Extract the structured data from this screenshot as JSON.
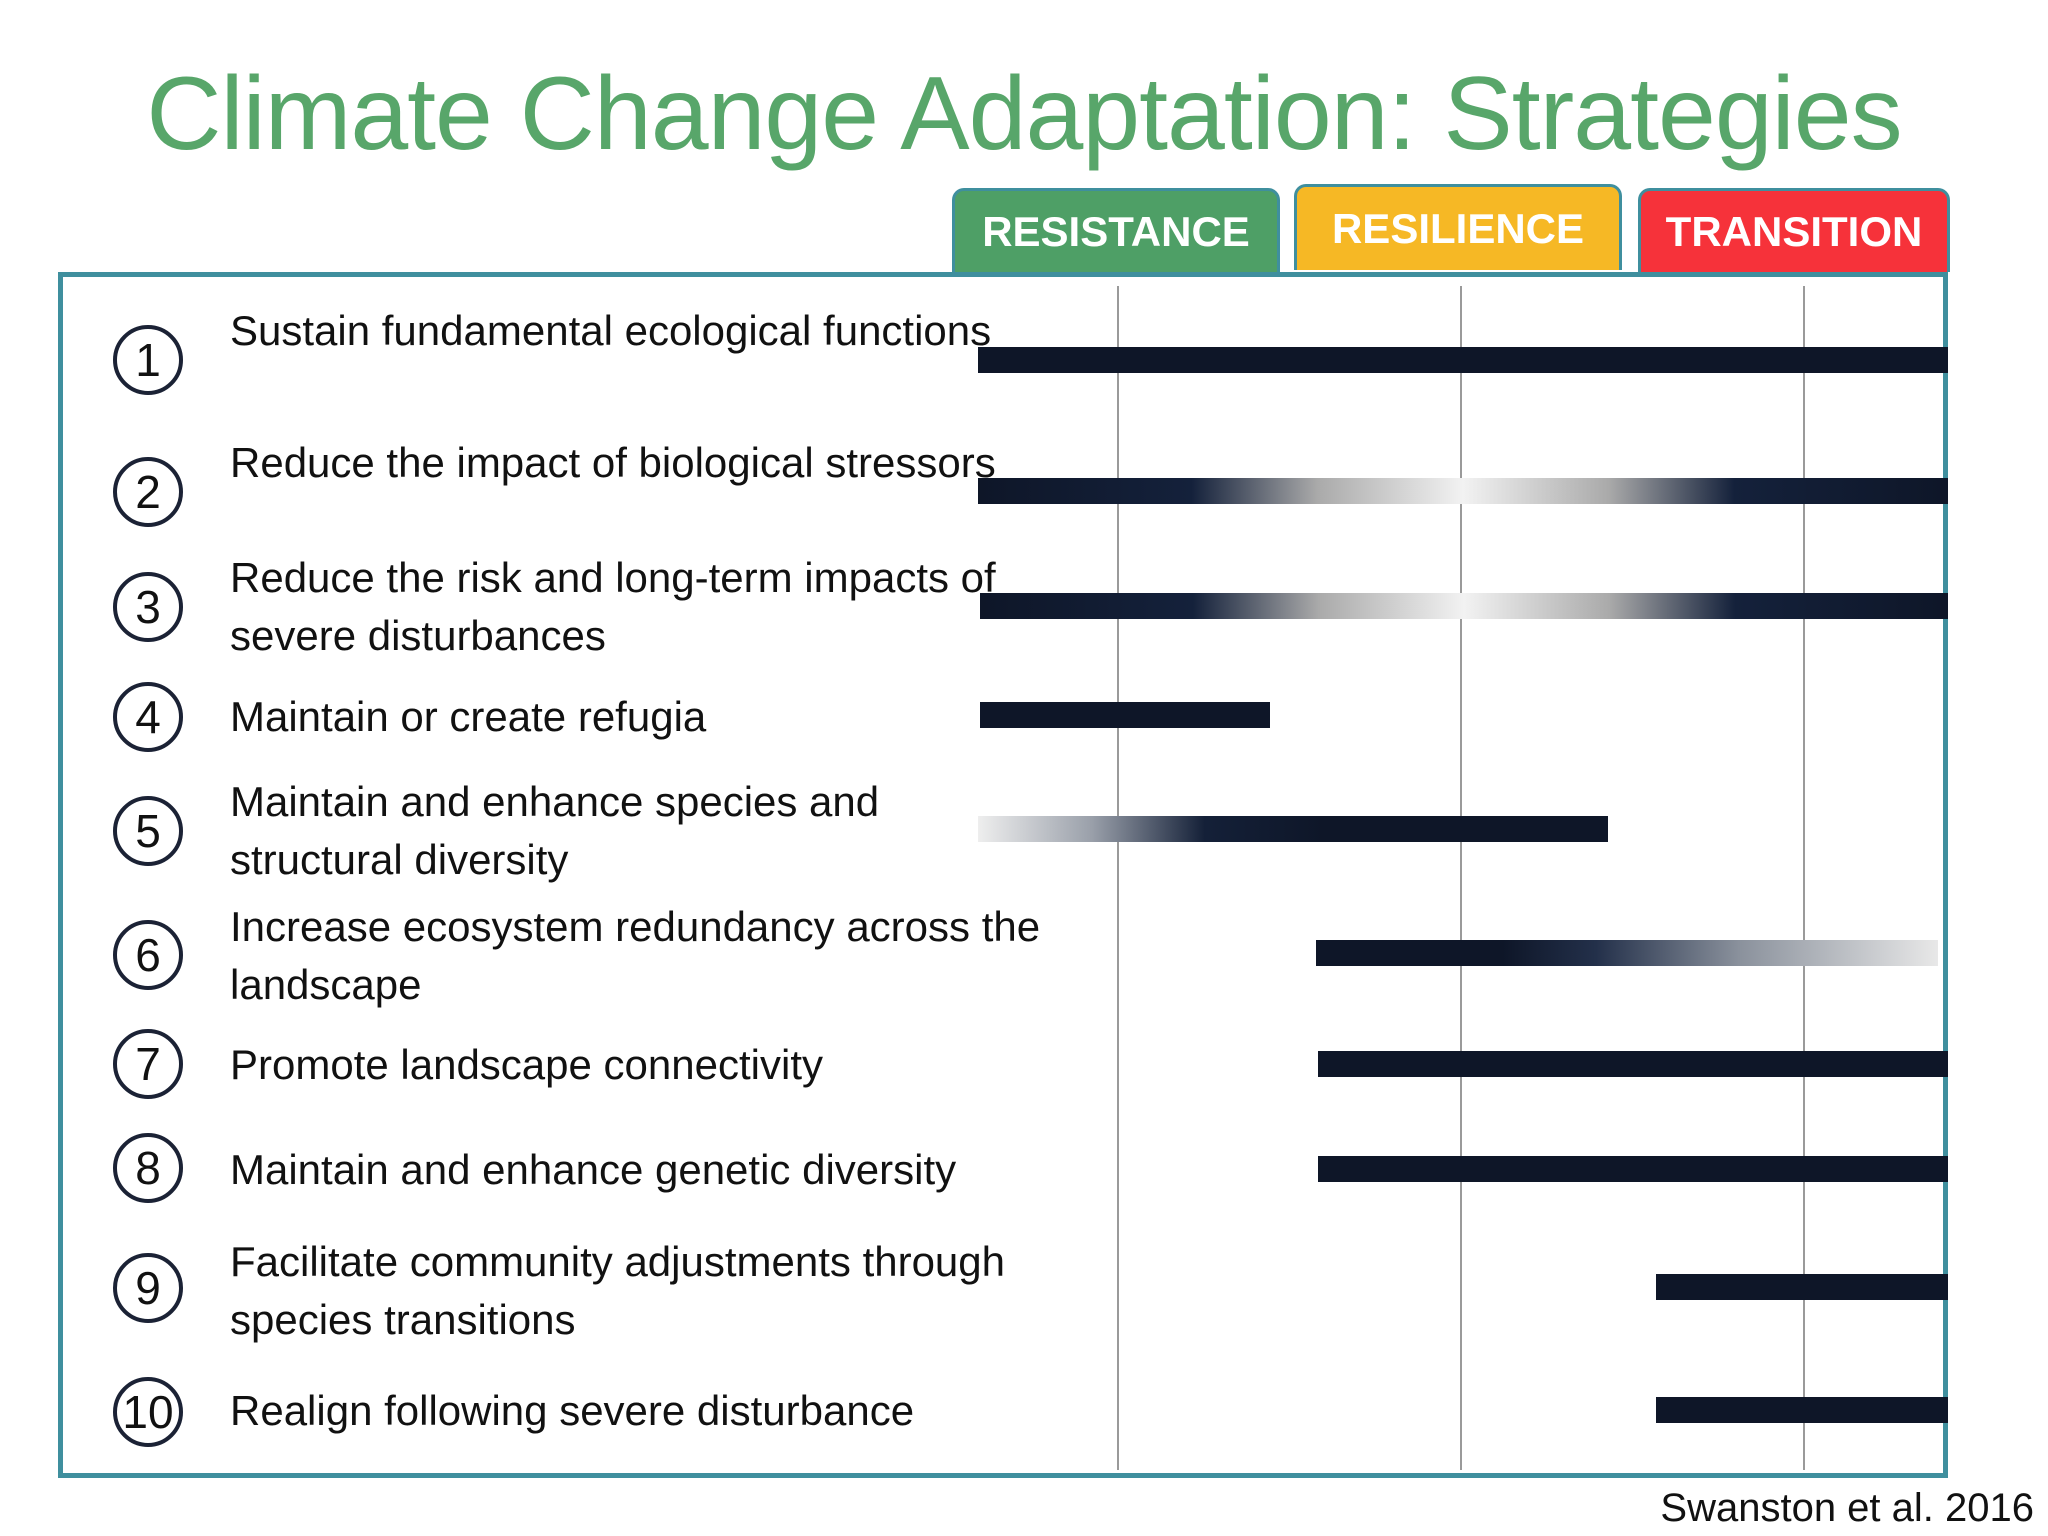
{
  "title": "Climate Change Adaptation: Strategies",
  "columns": [
    {
      "label": "RESISTANCE",
      "color": "#4e9f66"
    },
    {
      "label": "RESILIENCE",
      "color": "#f6b825"
    },
    {
      "label": "TRANSITION",
      "color": "#f6323a"
    }
  ],
  "strategies": [
    {
      "num": "1",
      "label": "Sustain fundamental ecological functions"
    },
    {
      "num": "2",
      "label": "Reduce the impact of biological stressors"
    },
    {
      "num": "3",
      "label": "Reduce the risk and long-term impacts of severe disturbances"
    },
    {
      "num": "4",
      "label": "Maintain or create refugia"
    },
    {
      "num": "5",
      "label": "Maintain and enhance species and structural diversity"
    },
    {
      "num": "6",
      "label": "Increase ecosystem redundancy across the landscape"
    },
    {
      "num": "7",
      "label": "Promote landscape connectivity"
    },
    {
      "num": "8",
      "label": "Maintain and enhance genetic diversity"
    },
    {
      "num": "9",
      "label": "Facilitate community adjustments through species transitions"
    },
    {
      "num": "10",
      "label": "Realign following severe disturbance"
    }
  ],
  "credit": "Swanston et al. 2016",
  "colors": {
    "bar": "#0e1628",
    "frame": "#3f8f9e",
    "title": "#58a66a"
  }
}
